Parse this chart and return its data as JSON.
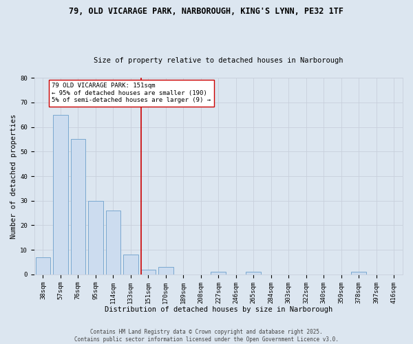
{
  "title1": "79, OLD VICARAGE PARK, NARBOROUGH, KING'S LYNN, PE32 1TF",
  "title2": "Size of property relative to detached houses in Narborough",
  "xlabel": "Distribution of detached houses by size in Narborough",
  "ylabel": "Number of detached properties",
  "categories": [
    "38sqm",
    "57sqm",
    "76sqm",
    "95sqm",
    "114sqm",
    "133sqm",
    "151sqm",
    "170sqm",
    "189sqm",
    "208sqm",
    "227sqm",
    "246sqm",
    "265sqm",
    "284sqm",
    "303sqm",
    "322sqm",
    "340sqm",
    "359sqm",
    "378sqm",
    "397sqm",
    "416sqm"
  ],
  "values": [
    7,
    65,
    55,
    30,
    26,
    8,
    2,
    3,
    0,
    0,
    1,
    0,
    1,
    0,
    0,
    0,
    0,
    0,
    1,
    0,
    0
  ],
  "bar_color": "#ccdcef",
  "bar_edge_color": "#7aa8d0",
  "highlight_index": 6,
  "vline_x": 6,
  "vline_color": "#cc0000",
  "annotation_text": "79 OLD VICARAGE PARK: 151sqm\n← 95% of detached houses are smaller (190)\n5% of semi-detached houses are larger (9) →",
  "annotation_box_color": "#ffffff",
  "annotation_box_edge": "#cc0000",
  "ylim": [
    0,
    80
  ],
  "yticks": [
    0,
    10,
    20,
    30,
    40,
    50,
    60,
    70,
    80
  ],
  "grid_color": "#c8d0dc",
  "bg_color": "#dce6f0",
  "footer": "Contains HM Land Registry data © Crown copyright and database right 2025.\nContains public sector information licensed under the Open Government Licence v3.0.",
  "title1_fontsize": 8.5,
  "title2_fontsize": 7.5,
  "xlabel_fontsize": 7.5,
  "ylabel_fontsize": 7.5,
  "tick_fontsize": 6.5,
  "annotation_fontsize": 6.5,
  "footer_fontsize": 5.5
}
